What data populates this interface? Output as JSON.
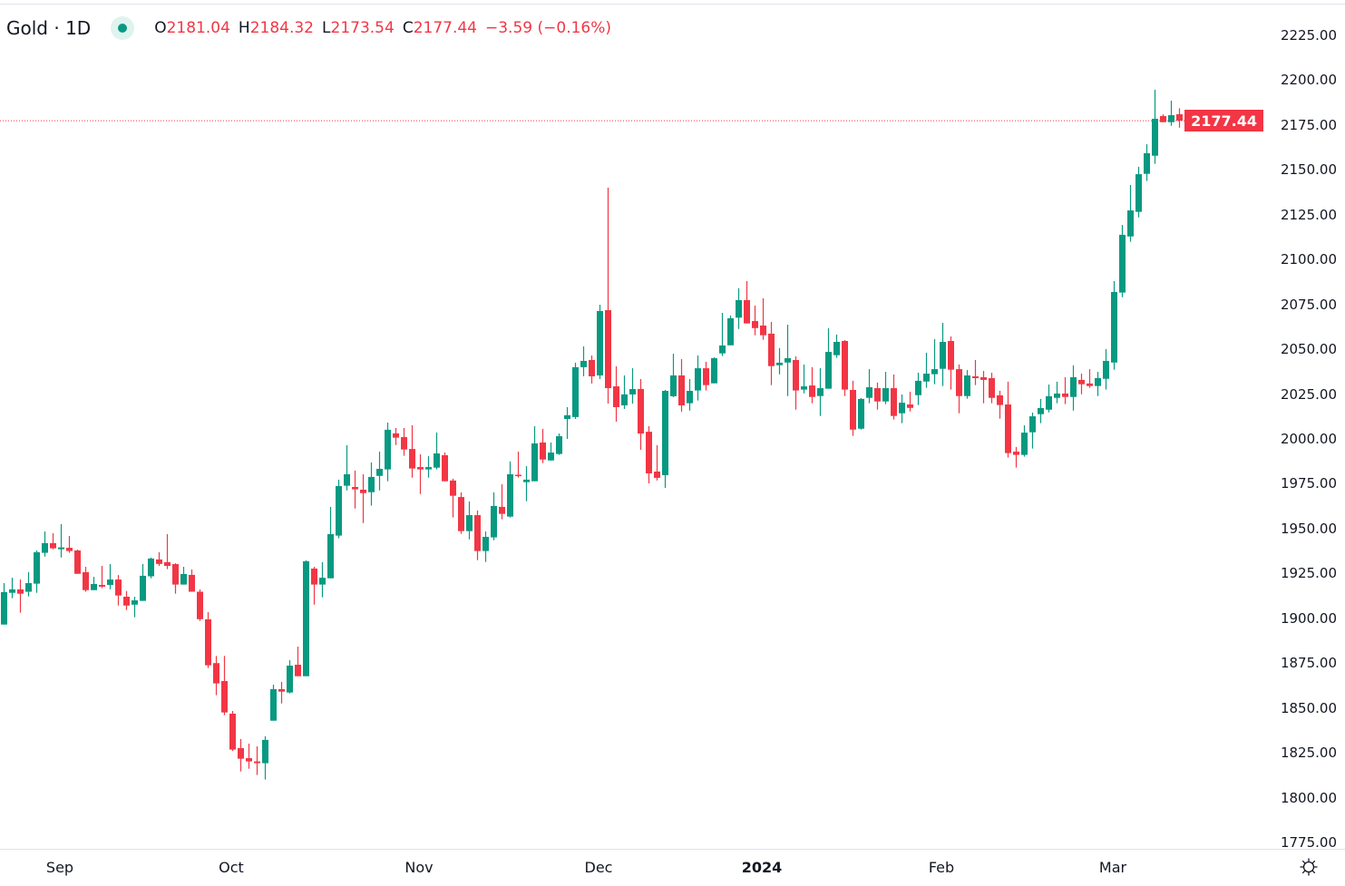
{
  "header": {
    "symbol": "Gold",
    "separator": "·",
    "interval": "1D",
    "status_icon": "market-open-dot",
    "open_label": "O",
    "open": "2181.04",
    "high_label": "H",
    "high": "2184.32",
    "low_label": "L",
    "low": "2173.54",
    "close_label": "C",
    "close": "2177.44",
    "change": "−3.59 (−0.16%)"
  },
  "colors": {
    "up": "#089981",
    "down": "#F23645",
    "text": "#131722",
    "grid": "#e0e3eb"
  },
  "settings_icon": "gear-icon",
  "chart_data": {
    "type": "candlestick",
    "title": "Gold · 1D",
    "y_ticks": [
      "2225.00",
      "2200.00",
      "2175.00",
      "2150.00",
      "2125.00",
      "2100.00",
      "2075.00",
      "2050.00",
      "2025.00",
      "2000.00",
      "1975.00",
      "1950.00",
      "1925.00",
      "1900.00",
      "1875.00",
      "1850.00",
      "1825.00",
      "1800.00",
      "1775.00"
    ],
    "ylim": [
      1775,
      2225
    ],
    "x_ticks": [
      "Sep",
      "Oct",
      "Nov",
      "Dec",
      "2024",
      "Feb",
      "Mar"
    ],
    "last_price": "2177.44",
    "grid": false,
    "ohlc_fields": [
      "open",
      "high",
      "low",
      "close"
    ],
    "candles": [
      [
        1896.5,
        1919.6,
        1896.5,
        1914.6
      ],
      [
        1914.2,
        1922.6,
        1911.2,
        1916.1
      ],
      [
        1916.1,
        1921.6,
        1903.1,
        1913.7
      ],
      [
        1914.8,
        1925.7,
        1912.2,
        1919.6
      ],
      [
        1919.3,
        1937.8,
        1914.2,
        1936.8
      ],
      [
        1936.5,
        1948.4,
        1934.4,
        1941.9
      ],
      [
        1941.9,
        1947.4,
        1938.5,
        1939.0
      ],
      [
        1938.5,
        1952.5,
        1933.9,
        1939.5
      ],
      [
        1939.3,
        1945.9,
        1936.5,
        1937.5
      ],
      [
        1937.8,
        1938.3,
        1924.8,
        1924.8
      ],
      [
        1925.7,
        1928.7,
        1914.8,
        1915.7
      ],
      [
        1915.7,
        1923.1,
        1915.7,
        1919.1
      ],
      [
        1918.6,
        1929.2,
        1916.8,
        1917.6
      ],
      [
        1918.6,
        1930.2,
        1916.2,
        1921.6
      ],
      [
        1921.6,
        1924.1,
        1907.1,
        1912.7
      ],
      [
        1912.0,
        1915.2,
        1904.6,
        1907.1
      ],
      [
        1907.6,
        1912.0,
        1900.6,
        1910.0
      ],
      [
        1909.7,
        1930.3,
        1909.7,
        1923.7
      ],
      [
        1923.4,
        1933.8,
        1922.3,
        1933.3
      ],
      [
        1932.8,
        1936.8,
        1929.2,
        1930.3
      ],
      [
        1931.3,
        1946.9,
        1927.4,
        1929.2
      ],
      [
        1930.2,
        1930.7,
        1913.7,
        1918.8
      ],
      [
        1918.8,
        1928.7,
        1918.8,
        1924.7
      ],
      [
        1924.2,
        1927.2,
        1914.8,
        1914.8
      ],
      [
        1914.8,
        1916.1,
        1898.5,
        1899.5
      ],
      [
        1899.4,
        1903.4,
        1872.3,
        1873.8
      ],
      [
        1875.0,
        1879.0,
        1857.1,
        1863.7
      ],
      [
        1865.0,
        1879.0,
        1846.0,
        1847.5
      ],
      [
        1846.8,
        1848.3,
        1826.0,
        1826.8
      ],
      [
        1827.6,
        1832.7,
        1814.6,
        1821.7
      ],
      [
        1822.0,
        1830.1,
        1816.1,
        1820.2
      ],
      [
        1820.2,
        1828.6,
        1812.6,
        1819.2
      ],
      [
        1819.2,
        1834.2,
        1810.1,
        1832.2
      ],
      [
        1842.9,
        1863.0,
        1842.9,
        1860.5
      ],
      [
        1860.5,
        1864.5,
        1852.5,
        1859.1
      ],
      [
        1858.6,
        1876.6,
        1858.1,
        1873.6
      ],
      [
        1874.1,
        1884.2,
        1867.7,
        1867.7
      ],
      [
        1867.7,
        1932.3,
        1867.7,
        1931.8
      ],
      [
        1927.7,
        1928.7,
        1907.6,
        1918.8
      ],
      [
        1918.8,
        1931.3,
        1911.7,
        1922.6
      ],
      [
        1922.3,
        1962.1,
        1922.3,
        1946.9
      ],
      [
        1946.1,
        1977.3,
        1944.6,
        1973.7
      ],
      [
        1973.9,
        1996.5,
        1971.3,
        1980.3
      ],
      [
        1973.2,
        1982.3,
        1961.2,
        1971.9
      ],
      [
        1971.7,
        1980.3,
        1953.1,
        1969.8
      ],
      [
        1970.3,
        1986.9,
        1962.8,
        1978.8
      ],
      [
        1979.4,
        1992.9,
        1971.3,
        1983.3
      ],
      [
        1983.0,
        2009.1,
        1976.4,
        2005.1
      ],
      [
        2003.1,
        2006.1,
        1996.6,
        2000.7
      ],
      [
        2001.0,
        2006.1,
        1990.6,
        1994.1
      ],
      [
        1994.4,
        2007.6,
        1978.4,
        1983.5
      ],
      [
        1984.3,
        1991.4,
        1969.3,
        1983.0
      ],
      [
        1983.0,
        1990.4,
        1978.4,
        1984.3
      ],
      [
        1984.0,
        2003.6,
        1983.0,
        1991.9
      ],
      [
        1990.9,
        1992.4,
        1976.4,
        1976.4
      ],
      [
        1976.8,
        1977.8,
        1956.2,
        1968.3
      ],
      [
        1967.6,
        1970.2,
        1947.1,
        1948.6
      ],
      [
        1948.6,
        1965.1,
        1944.0,
        1957.5
      ],
      [
        1957.5,
        1960.1,
        1932.4,
        1937.5
      ],
      [
        1937.5,
        1948.4,
        1931.4,
        1945.4
      ],
      [
        1945.1,
        1970.2,
        1943.5,
        1962.6
      ],
      [
        1962.1,
        1974.7,
        1955.2,
        1958.2
      ],
      [
        1956.7,
        1987.4,
        1956.2,
        1980.3
      ],
      [
        1980.0,
        1992.9,
        1978.4,
        1979.4
      ],
      [
        1975.9,
        1984.8,
        1965.3,
        1977.3
      ],
      [
        1976.4,
        2007.1,
        1976.4,
        1997.5
      ],
      [
        1998.0,
        2005.6,
        1986.5,
        1988.5
      ],
      [
        1988.0,
        1998.0,
        1988.0,
        1992.4
      ],
      [
        1991.6,
        2003.0,
        1991.1,
        2001.5
      ],
      [
        2011.1,
        2017.7,
        2000.0,
        2013.2
      ],
      [
        2012.2,
        2042.5,
        2011.1,
        2040.0
      ],
      [
        2040.0,
        2051.6,
        2034.9,
        2043.5
      ],
      [
        2044.0,
        2046.5,
        2030.9,
        2034.9
      ],
      [
        2035.4,
        2074.8,
        2033.4,
        2071.3
      ],
      [
        2071.8,
        2140.1,
        2019.7,
        2028.3
      ],
      [
        2029.3,
        2040.5,
        2009.6,
        2017.7
      ],
      [
        2018.7,
        2035.4,
        2016.7,
        2024.8
      ],
      [
        2024.8,
        2039.4,
        2019.7,
        2027.8
      ],
      [
        2027.8,
        2033.4,
        1993.9,
        2003.0
      ],
      [
        2004.0,
        2007.1,
        1975.2,
        1980.8
      ],
      [
        1981.8,
        1996.5,
        1976.8,
        1978.3
      ],
      [
        1979.8,
        2027.3,
        1972.7,
        2026.8
      ],
      [
        2023.8,
        2047.5,
        2023.3,
        2035.4
      ],
      [
        2035.4,
        2044.5,
        2015.2,
        2018.7
      ],
      [
        2019.9,
        2033.4,
        2015.8,
        2026.8
      ],
      [
        2027.0,
        2046.5,
        2021.4,
        2039.4
      ],
      [
        2039.4,
        2043.0,
        2027.0,
        2030.0
      ],
      [
        2031.0,
        2045.5,
        2031.0,
        2045.0
      ],
      [
        2047.7,
        2070.3,
        2046.2,
        2052.1
      ],
      [
        2052.2,
        2068.8,
        2052.2,
        2067.3
      ],
      [
        2067.6,
        2084.0,
        2061.3,
        2077.4
      ],
      [
        2077.4,
        2088.0,
        2064.4,
        2064.4
      ],
      [
        2065.7,
        2074.3,
        2057.8,
        2061.8
      ],
      [
        2063.2,
        2078.4,
        2055.3,
        2057.8
      ],
      [
        2058.7,
        2065.2,
        2030.0,
        2040.6
      ],
      [
        2041.1,
        2050.6,
        2036.0,
        2042.5
      ],
      [
        2042.6,
        2063.7,
        2023.9,
        2045.0
      ],
      [
        2044.0,
        2046.0,
        2016.3,
        2027.0
      ],
      [
        2027.5,
        2041.5,
        2025.4,
        2029.3
      ],
      [
        2029.8,
        2040.0,
        2019.9,
        2023.4
      ],
      [
        2023.9,
        2039.4,
        2012.8,
        2028.3
      ],
      [
        2028.0,
        2061.7,
        2028.0,
        2048.5
      ],
      [
        2046.7,
        2058.2,
        2045.2,
        2054.1
      ],
      [
        2054.6,
        2055.1,
        2023.9,
        2027.5
      ],
      [
        2027.3,
        2032.4,
        2001.7,
        2005.2
      ],
      [
        2005.7,
        2022.8,
        2005.2,
        2022.3
      ],
      [
        2022.9,
        2038.9,
        2019.9,
        2028.8
      ],
      [
        2028.3,
        2031.4,
        2016.3,
        2020.9
      ],
      [
        2020.9,
        2037.4,
        2019.4,
        2028.3
      ],
      [
        2028.3,
        2035.9,
        2010.8,
        2012.8
      ],
      [
        2014.3,
        2024.8,
        2008.8,
        2020.2
      ],
      [
        2019.2,
        2026.3,
        2015.3,
        2017.3
      ],
      [
        2024.4,
        2036.9,
        2018.9,
        2032.4
      ],
      [
        2032.0,
        2048.0,
        2028.5,
        2036.4
      ],
      [
        2036.1,
        2055.6,
        2030.5,
        2038.9
      ],
      [
        2039.1,
        2064.7,
        2029.5,
        2054.1
      ],
      [
        2054.6,
        2057.1,
        2027.5,
        2038.6
      ],
      [
        2038.9,
        2041.5,
        2014.3,
        2023.9
      ],
      [
        2023.9,
        2038.4,
        2022.4,
        2035.4
      ],
      [
        2034.9,
        2044.0,
        2030.0,
        2033.9
      ],
      [
        2034.4,
        2037.9,
        2019.9,
        2032.9
      ],
      [
        2033.9,
        2036.9,
        2019.9,
        2022.9
      ],
      [
        2024.3,
        2026.8,
        2011.3,
        2018.9
      ],
      [
        2019.2,
        2031.9,
        1989.6,
        1992.1
      ],
      [
        1992.9,
        1995.5,
        1984.0,
        1991.1
      ],
      [
        1991.1,
        2007.6,
        1990.1,
        2003.5
      ],
      [
        2003.7,
        2014.7,
        1994.6,
        2012.6
      ],
      [
        2013.8,
        2022.3,
        2008.8,
        2017.2
      ],
      [
        2016.3,
        2030.3,
        2014.8,
        2023.8
      ],
      [
        2022.9,
        2031.9,
        2019.9,
        2025.3
      ],
      [
        2025.3,
        2034.4,
        2019.4,
        2023.4
      ],
      [
        2023.4,
        2041.0,
        2015.8,
        2034.4
      ],
      [
        2032.9,
        2036.4,
        2024.9,
        2030.5
      ],
      [
        2030.9,
        2038.9,
        2028.5,
        2029.5
      ],
      [
        2029.5,
        2037.4,
        2023.9,
        2033.9
      ],
      [
        2033.5,
        2050.1,
        2027.5,
        2043.5
      ],
      [
        2042.6,
        2088.0,
        2038.6,
        2081.9
      ],
      [
        2081.6,
        2119.3,
        2079.0,
        2113.8
      ],
      [
        2112.9,
        2141.6,
        2109.9,
        2127.4
      ],
      [
        2126.6,
        2151.7,
        2123.5,
        2147.6
      ],
      [
        2147.8,
        2164.3,
        2143.8,
        2159.3
      ],
      [
        2157.9,
        2194.7,
        2153.4,
        2178.5
      ],
      [
        2180.0,
        2181.0,
        2176.6,
        2176.6
      ],
      [
        2176.6,
        2188.6,
        2174.6,
        2180.5
      ],
      [
        2181.04,
        2184.32,
        2173.54,
        2177.44
      ]
    ]
  }
}
